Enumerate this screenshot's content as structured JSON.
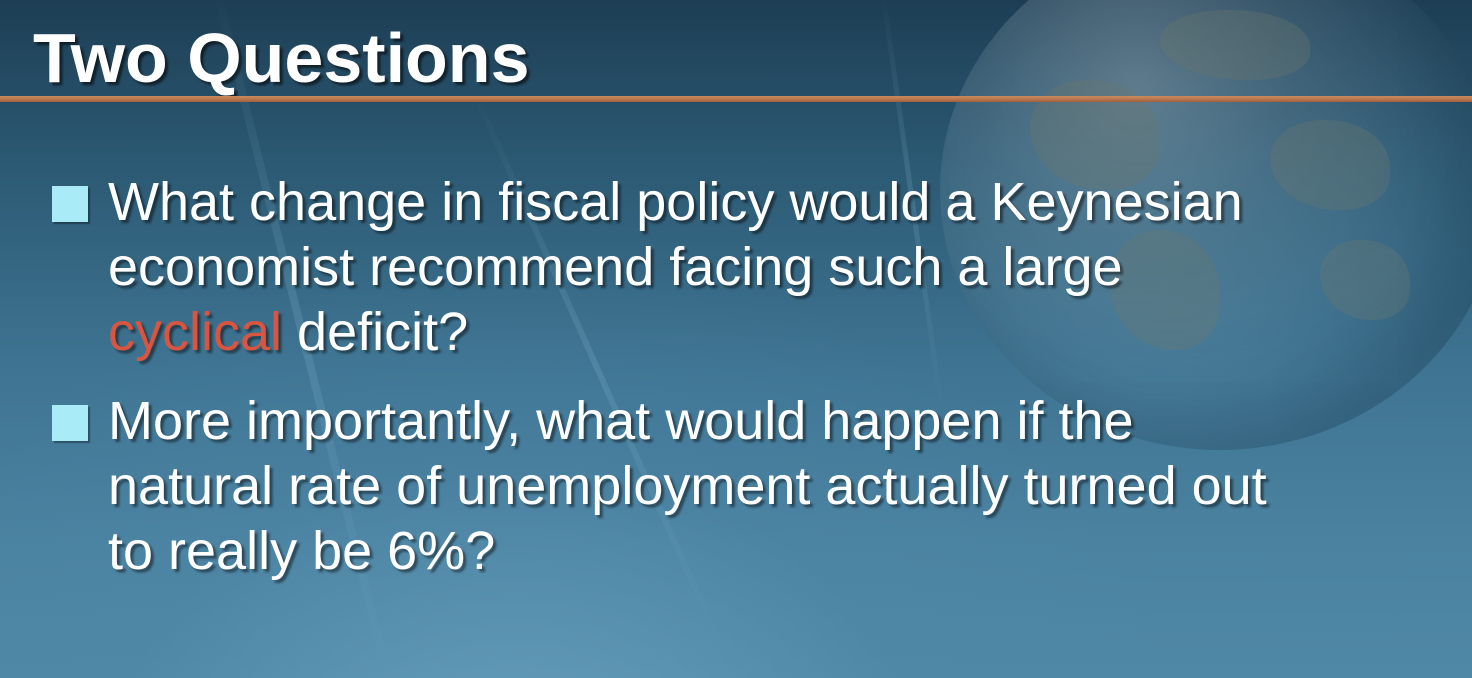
{
  "slide": {
    "title": "Two Questions",
    "bullets": [
      {
        "line1": "What change in fiscal policy would a Keynesian",
        "line2": "economist recommend facing such a large",
        "line3_highlight": "cyclical",
        "line3_rest": " deficit?"
      },
      {
        "line1": "More importantly, what would happen if the",
        "line2": "natural rate of unemployment actually turned out",
        "line3": "to really be 6%?"
      }
    ]
  },
  "colors": {
    "title_rule": "#b8744a",
    "bullet_marker": "#a9ecf7",
    "highlight_text": "#d9553f",
    "text": "#ffffff"
  }
}
